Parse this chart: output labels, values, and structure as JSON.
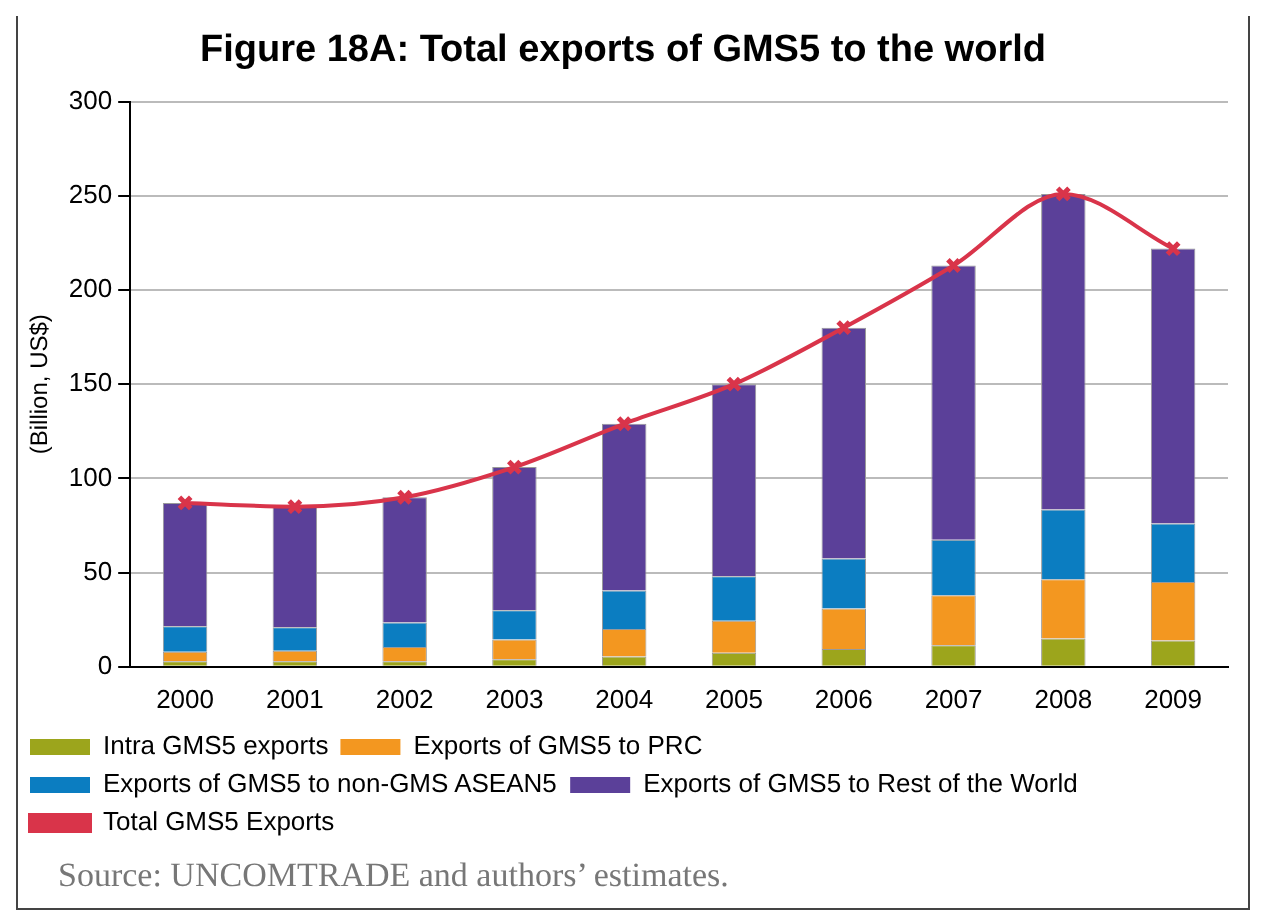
{
  "chart_data": {
    "type": "bar",
    "title": "Figure 18A: Total exports of GMS5 to the world",
    "ylabel": "(Billion, US$)",
    "categories": [
      "2000",
      "2001",
      "2002",
      "2003",
      "2004",
      "2005",
      "2006",
      "2007",
      "2008",
      "2009"
    ],
    "series": [
      {
        "name": "Intra GMS5 exports",
        "color": "#9ca51c",
        "values": [
          3,
          3,
          3,
          4,
          5.5,
          7.5,
          9.5,
          11.5,
          15,
          14
        ]
      },
      {
        "name": "Exports of GMS5 to PRC",
        "color": "#f39720",
        "values": [
          5,
          5.5,
          7.5,
          10.5,
          14.5,
          17,
          21.5,
          26.5,
          31.5,
          31
        ]
      },
      {
        "name": "Exports of GMS5 to non-GMS ASEAN5",
        "color": "#0b7dc1",
        "values": [
          13.5,
          12.5,
          13,
          15.5,
          20.5,
          23.5,
          26.5,
          29.5,
          37,
          31
        ]
      },
      {
        "name": "Exports of GMS5 to Rest of the World",
        "color": "#5b4099",
        "values": [
          65.5,
          64,
          66.5,
          76,
          88.5,
          102,
          122.5,
          145.5,
          167.5,
          146
        ]
      },
      {
        "name": "Total GMS5 Exports",
        "type": "line",
        "color": "#d9344a",
        "marker": "cross",
        "values": [
          87,
          85,
          90,
          106,
          129,
          150,
          180,
          213,
          251,
          222
        ]
      }
    ],
    "stacked": true,
    "ylim": [
      0,
      300
    ],
    "yticks": [
      0,
      50,
      100,
      150,
      200,
      250,
      300
    ],
    "grid": "y",
    "legend": "bottom",
    "annotations": [
      "Source: UNCOMTRADE and authors’ estimates."
    ]
  }
}
